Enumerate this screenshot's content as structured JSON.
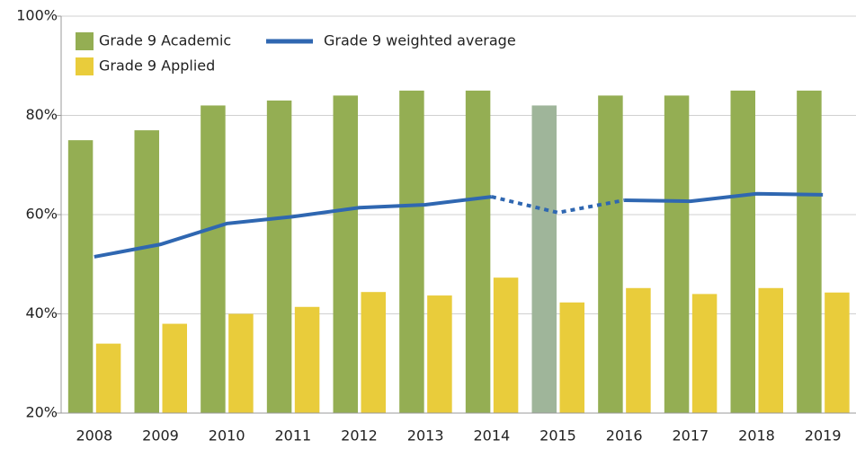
{
  "chart_data": {
    "type": "bar_line",
    "categories": [
      "2008",
      "2009",
      "2010",
      "2011",
      "2012",
      "2013",
      "2014",
      "2015",
      "2016",
      "2017",
      "2018",
      "2019"
    ],
    "series": [
      {
        "name": "Grade 9 Academic",
        "type": "bar",
        "color": "#94ae53",
        "colors": [
          "#94ae53",
          "#94ae53",
          "#94ae53",
          "#94ae53",
          "#94ae53",
          "#94ae53",
          "#94ae53",
          "#9fb59a",
          "#94ae53",
          "#94ae53",
          "#94ae53",
          "#94ae53"
        ],
        "values": [
          75,
          77,
          82,
          83,
          84,
          85,
          85,
          82,
          84,
          84,
          85,
          85
        ]
      },
      {
        "name": "Grade 9 Applied",
        "type": "bar",
        "color": "#e9cc3b",
        "values": [
          34,
          38,
          40,
          41.4,
          44.4,
          43.7,
          47.3,
          42.3,
          45.2,
          44,
          45.2,
          44.3
        ]
      },
      {
        "name": "Grade 9 weighted average",
        "type": "line",
        "color": "#2f67b1",
        "dotted_points": [
          7
        ],
        "values": [
          51.5,
          54,
          58.2,
          59.6,
          61.4,
          62,
          63.6,
          60.4,
          62.9,
          62.7,
          64.2,
          64
        ]
      }
    ],
    "ylim": [
      20,
      100
    ],
    "yticks": [
      {
        "value": 20,
        "label": "20%"
      },
      {
        "value": 40,
        "label": "40%"
      },
      {
        "value": 60,
        "label": "60%"
      },
      {
        "value": 80,
        "label": "80%"
      },
      {
        "value": 100,
        "label": "100%"
      }
    ],
    "grid": true,
    "legend": "top-left"
  }
}
